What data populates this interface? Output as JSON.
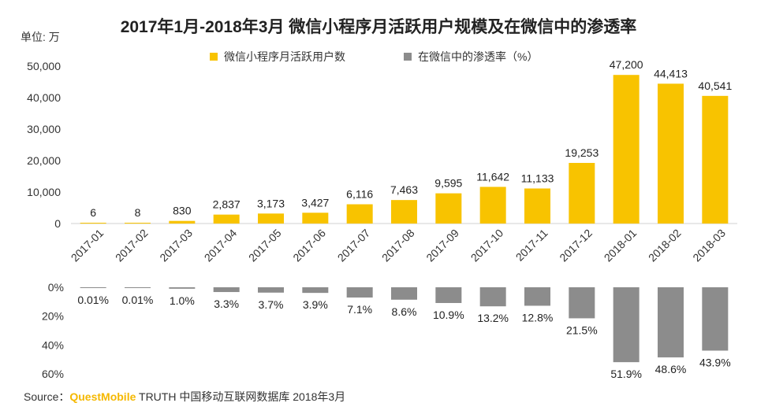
{
  "chart_data": [
    {
      "type": "bar",
      "title": "2017年1月-2018年3月 微信小程序月活跃用户规模及在微信中的渗透率",
      "ylabel": "单位: 万",
      "ylim": [
        0,
        50000
      ],
      "yticks": [
        "50,000",
        "40,000",
        "30,000",
        "20,000",
        "10,000",
        "0"
      ],
      "categories": [
        "2017-01",
        "2017-02",
        "2017-03",
        "2017-04",
        "2017-05",
        "2017-06",
        "2017-07",
        "2017-08",
        "2017-09",
        "2017-10",
        "2017-11",
        "2017-12",
        "2018-01",
        "2018-02",
        "2018-03"
      ],
      "series": [
        {
          "name": "微信小程序月活跃用户数",
          "color": "#f8c300",
          "values": [
            6,
            8,
            830,
            2837,
            3173,
            3427,
            6116,
            7463,
            9595,
            11642,
            11133,
            19253,
            47200,
            44413,
            40541
          ],
          "labels": [
            "6",
            "8",
            "830",
            "2,837",
            "3,173",
            "3,427",
            "6,116",
            "7,463",
            "9,595",
            "11,642",
            "11,133",
            "19,253",
            "47,200",
            "44,413",
            "40,541"
          ]
        }
      ]
    },
    {
      "type": "bar",
      "orientation": "downward",
      "ylim": [
        0,
        60
      ],
      "yticks": [
        "0%",
        "20%",
        "40%",
        "60%"
      ],
      "categories": [
        "2017-01",
        "2017-02",
        "2017-03",
        "2017-04",
        "2017-05",
        "2017-06",
        "2017-07",
        "2017-08",
        "2017-09",
        "2017-10",
        "2017-11",
        "2017-12",
        "2018-01",
        "2018-02",
        "2018-03"
      ],
      "series": [
        {
          "name": "在微信中的渗透率（%）",
          "color": "#8c8c8c",
          "values": [
            0.01,
            0.01,
            1.0,
            3.3,
            3.7,
            3.9,
            7.1,
            8.6,
            10.9,
            13.2,
            12.8,
            21.5,
            51.9,
            48.6,
            43.9
          ],
          "labels": [
            "0.01%",
            "0.01%",
            "1.0%",
            "3.3%",
            "3.7%",
            "3.9%",
            "7.1%",
            "8.6%",
            "10.9%",
            "13.2%",
            "12.8%",
            "21.5%",
            "51.9%",
            "48.6%",
            "43.9%"
          ]
        }
      ]
    }
  ],
  "source": {
    "prefix": "Source：",
    "brand": "QuestMobile",
    "rest": " TRUTH 中国移动互联网数据库 2018年3月"
  }
}
